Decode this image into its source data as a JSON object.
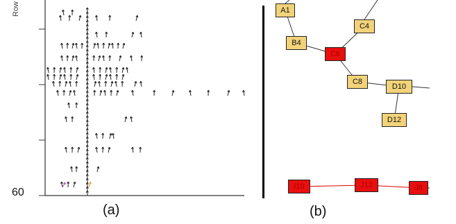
{
  "panel_a": {
    "caption": "(a)",
    "y_axis_label": "Row",
    "y_tick_label": "60"
  },
  "panel_b": {
    "caption": "(b)",
    "nodes": [
      {
        "id": "A1",
        "label": "A1",
        "color": "yellow"
      },
      {
        "id": "C4",
        "label": "C4",
        "color": "yellow"
      },
      {
        "id": "B4",
        "label": "B4",
        "color": "yellow"
      },
      {
        "id": "C6",
        "label": "C6",
        "color": "red"
      },
      {
        "id": "C8",
        "label": "C8",
        "color": "yellow"
      },
      {
        "id": "D10",
        "label": "D10",
        "color": "yellow"
      },
      {
        "id": "D12",
        "label": "D12",
        "color": "yellow"
      },
      {
        "id": "I10",
        "label": "I10",
        "color": "red"
      },
      {
        "id": "J12",
        "label": "J12",
        "color": "red"
      },
      {
        "id": "J8",
        "label": "J8",
        "color": "red"
      }
    ],
    "edges": [
      [
        "A1",
        "B4"
      ],
      [
        "B4",
        "C6"
      ],
      [
        "C4",
        "C6"
      ],
      [
        "C6",
        "C8"
      ],
      [
        "C8",
        "D10"
      ],
      [
        "D10",
        "D12"
      ],
      [
        "I10",
        "J12"
      ],
      [
        "J12",
        "J8"
      ]
    ]
  },
  "colors": {
    "yellow_node": "#f3d37a",
    "red_node": "#e80f0f",
    "edge_red": "#e00000",
    "edge_dark": "#333333"
  }
}
